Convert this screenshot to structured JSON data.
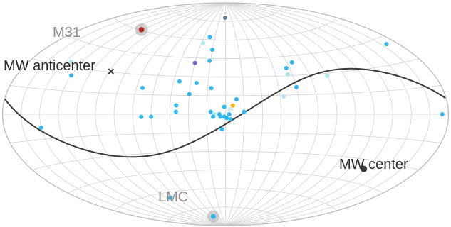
{
  "chart_data": {
    "type": "scatter",
    "projection": "aitoff",
    "grid": true,
    "labels": {
      "m31": "M31",
      "mw_anticenter": "MW anticenter",
      "mw_center": "MW center",
      "lmc": "LMC"
    },
    "colors": {
      "grid": "#cfcfcf",
      "outline": "#b9b9b9",
      "curve": "#3a3a3a",
      "marker": "#3a3a3a",
      "text_dark": "#2a2a2a",
      "text_gray": "#8c8c8c",
      "halo": "#9a9a9a",
      "m31_dot": "#b22222",
      "lmc_dot": "#2bb7f0"
    },
    "points": [
      {
        "lon": 1.0,
        "lat": 78.0,
        "color": "#5a7d95"
      },
      {
        "lon": 22.0,
        "lat": 62.0,
        "color": "#2bb7f0"
      },
      {
        "lon": 28.0,
        "lat": 57.0,
        "color": "#aee6f2"
      },
      {
        "lon": 15.0,
        "lat": 52.0,
        "color": "#2bb7f0"
      },
      {
        "lon": 16.0,
        "lat": 43.0,
        "color": "#2bb7f0"
      },
      {
        "lon": 30.0,
        "lat": 41.0,
        "color": "#7b5cd6"
      },
      {
        "lon": 40.0,
        "lat": 26.0,
        "color": "#2bb7f0"
      },
      {
        "lon": 25.0,
        "lat": 25.0,
        "color": "#2bb7f0"
      },
      {
        "lon": 12.0,
        "lat": 21.0,
        "color": "#2bb7f0"
      },
      {
        "lon": 30.0,
        "lat": 16.0,
        "color": "#2bb7f0"
      },
      {
        "lon": -9.0,
        "lat": 12.0,
        "color": "#2bb7f0"
      },
      {
        "lon": -6.0,
        "lat": 7.0,
        "color": "#f0b400"
      },
      {
        "lon": 40.0,
        "lat": 7.0,
        "color": "#2bb7f0"
      },
      {
        "lon": 1.0,
        "lat": 6.0,
        "color": "#2bb7f0"
      },
      {
        "lon": -4.0,
        "lat": 4.0,
        "color": "#bfe9f5"
      },
      {
        "lon": 12.0,
        "lat": 2.0,
        "color": "#2bb7f0"
      },
      {
        "lon": 40.0,
        "lat": 2.0,
        "color": "#2bb7f0"
      },
      {
        "lon": 5.0,
        "lat": 0.0,
        "color": "#2bb7f0"
      },
      {
        "lon": -3.0,
        "lat": 0.0,
        "color": "#2bb7f0"
      },
      {
        "lon": 9.0,
        "lat": 0.0,
        "color": "#aee6f2"
      },
      {
        "lon": -15.0,
        "lat": 2.0,
        "color": "#2bb7f0"
      },
      {
        "lon": 1.0,
        "lat": -2.0,
        "color": "#2bb7f0"
      },
      {
        "lon": -1.0,
        "lat": -3.0,
        "color": "#2bb7f0"
      },
      {
        "lon": 4.0,
        "lat": -2.0,
        "color": "#2bb7f0"
      },
      {
        "lon": 10.0,
        "lat": -2.0,
        "color": "#2bb7f0"
      },
      {
        "lon": -4.0,
        "lat": -4.0,
        "color": "#2bb7f0"
      },
      {
        "lon": 3.0,
        "lat": -12.0,
        "color": "#2bb7f0"
      },
      {
        "lon": -57.0,
        "lat": 36.0,
        "color": "#2bb7f0"
      },
      {
        "lon": -65.0,
        "lat": 40.0,
        "color": "#2bb7f0"
      },
      {
        "lon": -56.0,
        "lat": 31.0,
        "color": "#aee6f2"
      },
      {
        "lon": -60.0,
        "lat": 21.0,
        "color": "#2bb7f0"
      },
      {
        "lon": -48.0,
        "lat": 14.0,
        "color": "#aee6f2"
      },
      {
        "lon": -90.0,
        "lat": 28.0,
        "color": "#aee6f2"
      },
      {
        "lon": -170.0,
        "lat": 41.0,
        "color": "#2bb7f0"
      },
      {
        "lon": -175.0,
        "lat": 0.0,
        "color": "#2bb7f0"
      },
      {
        "lon": 145.0,
        "lat": 33.0,
        "color": "#aee6f2"
      },
      {
        "lon": 135.0,
        "lat": 25.0,
        "color": "#2bb7f0"
      },
      {
        "lon": 150.0,
        "lat": -8.0,
        "color": "#2bb7f0"
      },
      {
        "lon": 70.0,
        "lat": 20.0,
        "color": "#2bb7f0"
      },
      {
        "lon": 68.0,
        "lat": -2.0,
        "color": "#2bb7f0"
      },
      {
        "lon": 60.0,
        "lat": -2.0,
        "color": "#2bb7f0"
      },
      {
        "lon": 85.0,
        "lat": -64.0,
        "color": "#2bb7f0"
      }
    ],
    "m31": {
      "lon": 122.5,
      "lat": 60.5
    },
    "lmc": {
      "lon": 50.0,
      "lat": -82.0
    },
    "mw_anticenter": {
      "lon": 103.5,
      "lat": 30.5
    },
    "mw_center": {
      "lon": -133.0,
      "lat": -36.0
    },
    "great_circle": {
      "pole_lon": 77.0,
      "pole_lat": 58.0
    }
  }
}
